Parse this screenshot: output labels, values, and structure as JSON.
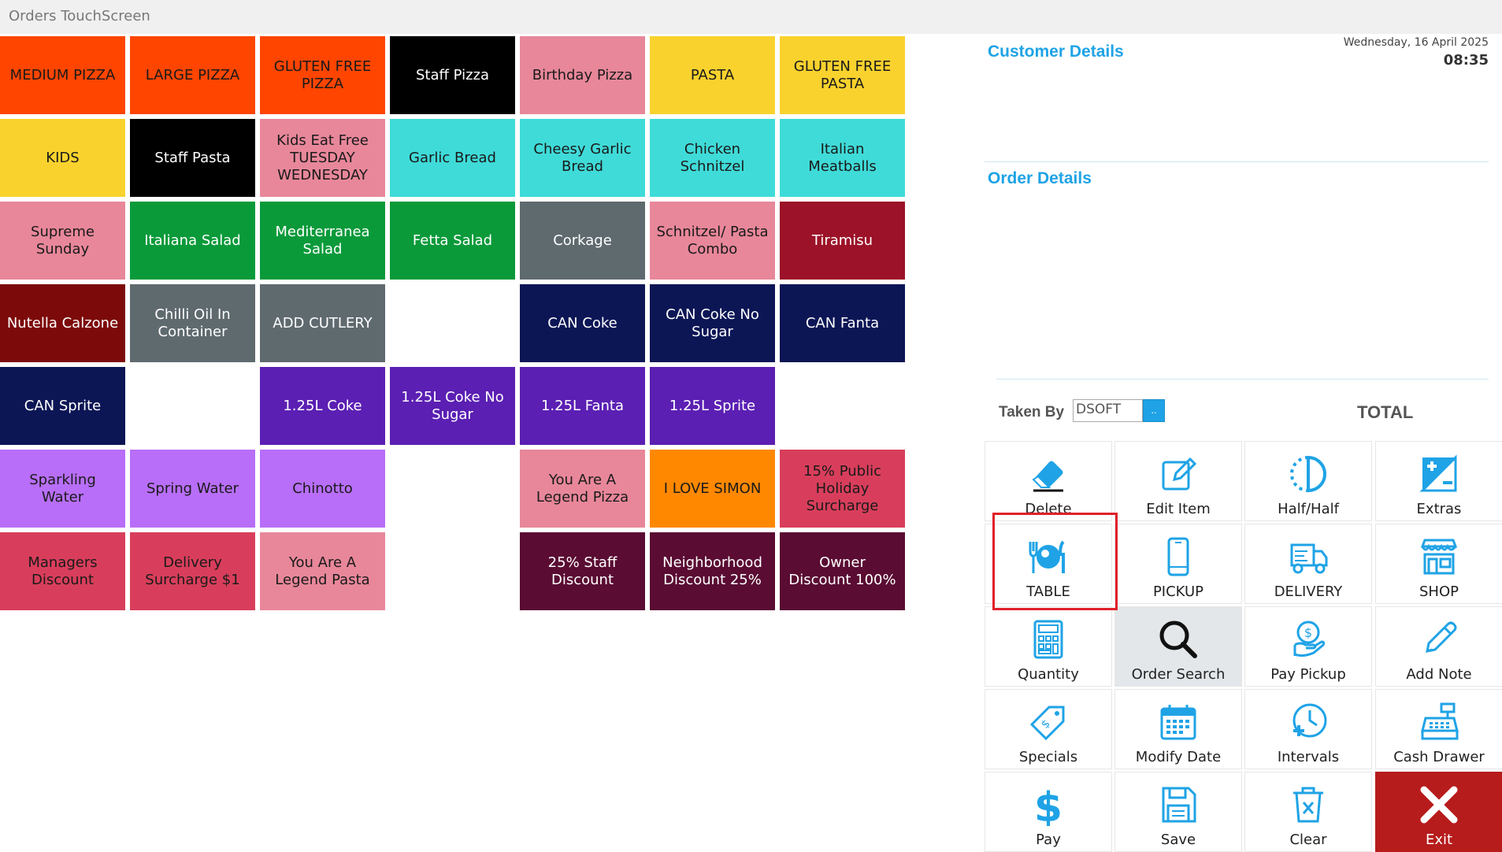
{
  "window": {
    "title": "Orders TouchScreen"
  },
  "menu_tiles": [
    {
      "label": "MEDIUM PIZZA",
      "bg": "#ff4500",
      "fg": "#1a1a1a"
    },
    {
      "label": "LARGE PIZZA",
      "bg": "#ff4500",
      "fg": "#1a1a1a"
    },
    {
      "label": "GLUTEN FREE PIZZA",
      "bg": "#ff4500",
      "fg": "#1a1a1a"
    },
    {
      "label": "Staff Pizza",
      "bg": "#000000",
      "fg": "#ffffff"
    },
    {
      "label": "Birthday Pizza",
      "bg": "#e8879a",
      "fg": "#1a1a1a"
    },
    {
      "label": "PASTA",
      "bg": "#f9d22e",
      "fg": "#1a1a1a"
    },
    {
      "label": "GLUTEN FREE PASTA",
      "bg": "#f9d22e",
      "fg": "#1a1a1a"
    },
    {
      "label": "KIDS",
      "bg": "#f9d22e",
      "fg": "#1a1a1a"
    },
    {
      "label": "Staff Pasta",
      "bg": "#000000",
      "fg": "#ffffff"
    },
    {
      "label": "Kids Eat Free TUESDAY WEDNESDAY",
      "bg": "#e8879a",
      "fg": "#1a1a1a"
    },
    {
      "label": "Garlic Bread",
      "bg": "#3fdbd8",
      "fg": "#1a1a1a"
    },
    {
      "label": "Cheesy Garlic Bread",
      "bg": "#3fdbd8",
      "fg": "#1a1a1a"
    },
    {
      "label": "Chicken Schnitzel",
      "bg": "#3fdbd8",
      "fg": "#1a1a1a"
    },
    {
      "label": "Italian Meatballs",
      "bg": "#3fdbd8",
      "fg": "#1a1a1a"
    },
    {
      "label": "Supreme Sunday",
      "bg": "#e8879a",
      "fg": "#1a1a1a"
    },
    {
      "label": "Italiana Salad",
      "bg": "#0a9a3a",
      "fg": "#ffffff"
    },
    {
      "label": "Mediterranea Salad",
      "bg": "#0a9a3a",
      "fg": "#ffffff"
    },
    {
      "label": "Fetta Salad",
      "bg": "#0a9a3a",
      "fg": "#ffffff"
    },
    {
      "label": "Corkage",
      "bg": "#5f6a6f",
      "fg": "#ffffff"
    },
    {
      "label": "Schnitzel/ Pasta Combo",
      "bg": "#e8879a",
      "fg": "#1a1a1a"
    },
    {
      "label": "Tiramisu",
      "bg": "#9c1228",
      "fg": "#ffffff"
    },
    {
      "label": "Nutella Calzone",
      "bg": "#7d0a0a",
      "fg": "#ffffff"
    },
    {
      "label": "Chilli Oil In Container",
      "bg": "#5f6a6f",
      "fg": "#ffffff"
    },
    {
      "label": "ADD CUTLERY",
      "bg": "#5f6a6f",
      "fg": "#ffffff"
    },
    {
      "label": "",
      "bg": "#ffffff",
      "fg": "#ffffff"
    },
    {
      "label": "CAN Coke",
      "bg": "#0c1655",
      "fg": "#ffffff"
    },
    {
      "label": "CAN Coke No Sugar",
      "bg": "#0c1655",
      "fg": "#ffffff"
    },
    {
      "label": "CAN Fanta",
      "bg": "#0c1655",
      "fg": "#ffffff"
    },
    {
      "label": "CAN Sprite",
      "bg": "#0c1655",
      "fg": "#ffffff"
    },
    {
      "label": "",
      "bg": "#ffffff",
      "fg": "#ffffff"
    },
    {
      "label": "1.25L Coke",
      "bg": "#5b1fb3",
      "fg": "#ffffff"
    },
    {
      "label": "1.25L Coke No Sugar",
      "bg": "#5b1fb3",
      "fg": "#ffffff"
    },
    {
      "label": "1.25L Fanta",
      "bg": "#5b1fb3",
      "fg": "#ffffff"
    },
    {
      "label": "1.25L Sprite",
      "bg": "#5b1fb3",
      "fg": "#ffffff"
    },
    {
      "label": "",
      "bg": "#ffffff",
      "fg": "#ffffff"
    },
    {
      "label": "Sparkling Water",
      "bg": "#b86ef8",
      "fg": "#1a1a1a"
    },
    {
      "label": "Spring Water",
      "bg": "#b86ef8",
      "fg": "#1a1a1a"
    },
    {
      "label": "Chinotto",
      "bg": "#b86ef8",
      "fg": "#1a1a1a"
    },
    {
      "label": "",
      "bg": "#ffffff",
      "fg": "#ffffff"
    },
    {
      "label": "You Are A Legend Pizza",
      "bg": "#e8879a",
      "fg": "#1a1a1a"
    },
    {
      "label": "I LOVE SIMON",
      "bg": "#ff8800",
      "fg": "#1a1a1a"
    },
    {
      "label": "15% Public Holiday Surcharge",
      "bg": "#d83e5b",
      "fg": "#1a1a1a"
    },
    {
      "label": "Managers Discount",
      "bg": "#d83e5b",
      "fg": "#1a1a1a"
    },
    {
      "label": "Delivery Surcharge $1",
      "bg": "#d83e5b",
      "fg": "#1a1a1a"
    },
    {
      "label": "You Are A Legend Pasta",
      "bg": "#e8879a",
      "fg": "#1a1a1a"
    },
    {
      "label": "",
      "bg": "#ffffff",
      "fg": "#ffffff"
    },
    {
      "label": "25% Staff Discount",
      "bg": "#5a0c33",
      "fg": "#ffffff"
    },
    {
      "label": "Neighborhood Discount 25%",
      "bg": "#5a0c33",
      "fg": "#ffffff"
    },
    {
      "label": "Owner Discount 100%",
      "bg": "#5a0c33",
      "fg": "#ffffff"
    }
  ],
  "customer_details": {
    "title": "Customer Details"
  },
  "order_details": {
    "title": "Order Details"
  },
  "datetime": {
    "date": "Wednesday, 16 April 2025",
    "time": "08:35"
  },
  "taken_by": {
    "label": "Taken By",
    "value": "DSOFT",
    "button": ".."
  },
  "total": {
    "label": "TOTAL"
  },
  "actions": [
    {
      "label": "Delete",
      "icon": "eraser-icon"
    },
    {
      "label": "Edit Item",
      "icon": "edit-icon"
    },
    {
      "label": "Half/Half",
      "icon": "half-circle-icon"
    },
    {
      "label": "Extras",
      "icon": "plus-minus-icon"
    },
    {
      "label": "TABLE",
      "icon": "cutlery-icon"
    },
    {
      "label": "PICKUP",
      "icon": "phone-icon"
    },
    {
      "label": "DELIVERY",
      "icon": "truck-icon"
    },
    {
      "label": "SHOP",
      "icon": "shop-icon"
    },
    {
      "label": "Quantity",
      "icon": "calculator-icon"
    },
    {
      "label": "Order Search",
      "icon": "search-icon"
    },
    {
      "label": "Pay Pickup",
      "icon": "pay-pickup-icon"
    },
    {
      "label": "Add Note",
      "icon": "pencil-icon"
    },
    {
      "label": "Specials",
      "icon": "tag-icon"
    },
    {
      "label": "Modify Date",
      "icon": "calendar-icon"
    },
    {
      "label": "Intervals",
      "icon": "clock-plus-icon"
    },
    {
      "label": "Cash Drawer",
      "icon": "cash-register-icon"
    },
    {
      "label": "Pay",
      "icon": "dollar-icon"
    },
    {
      "label": "Save",
      "icon": "save-icon"
    },
    {
      "label": "Clear",
      "icon": "trash-icon"
    },
    {
      "label": "Exit",
      "icon": "close-icon"
    }
  ],
  "colors": {
    "accent": "#1fa3e6",
    "exit": "#b71c1c",
    "highlight": "#e0202a"
  }
}
